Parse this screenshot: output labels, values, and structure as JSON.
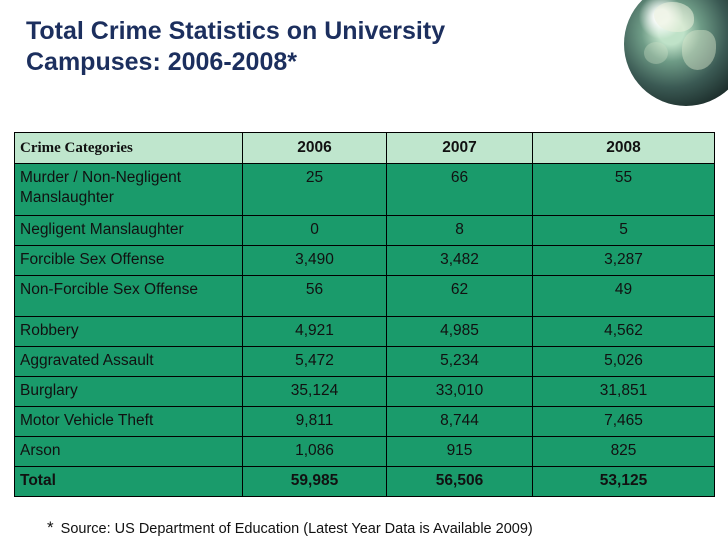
{
  "slide": {
    "title_line1": "Total Crime Statistics on University",
    "title_line2": "Campuses: 2006-2008*"
  },
  "table": {
    "headers": [
      "Crime Categories",
      "2006",
      "2007",
      "2008"
    ],
    "rows": [
      {
        "category": "Murder / Non-Negligent Manslaughter",
        "v2006": "25",
        "v2007": "66",
        "v2008": "55"
      },
      {
        "category": "Negligent Manslaughter",
        "v2006": "0",
        "v2007": "8",
        "v2008": "5"
      },
      {
        "category": "Forcible Sex Offense",
        "v2006": "3,490",
        "v2007": "3,482",
        "v2008": "3,287"
      },
      {
        "category": "Non-Forcible Sex Offense",
        "v2006": "56",
        "v2007": "62",
        "v2008": "49"
      },
      {
        "category": "Robbery",
        "v2006": "4,921",
        "v2007": "4,985",
        "v2008": "4,562"
      },
      {
        "category": "Aggravated Assault",
        "v2006": "5,472",
        "v2007": "5,234",
        "v2008": "5,026"
      },
      {
        "category": "Burglary",
        "v2006": "35,124",
        "v2007": "33,010",
        "v2008": "31,851"
      },
      {
        "category": "Motor Vehicle Theft",
        "v2006": "9,811",
        "v2007": "8,744",
        "v2008": "7,465"
      },
      {
        "category": "Arson",
        "v2006": "1,086",
        "v2007": "915",
        "v2008": "825"
      },
      {
        "category": "Total",
        "v2006": "59,985",
        "v2007": "56,506",
        "v2008": "53,125"
      }
    ]
  },
  "footnote": {
    "marker": "*",
    "text": "Source: US Department of Education (Latest Year Data is Available 2009)"
  },
  "colors": {
    "title": "#1c2f5e",
    "header_bg": "#bfe6cd",
    "body_bg": "#1a9b6b"
  },
  "icons": {
    "decoration": "globe-icon"
  }
}
